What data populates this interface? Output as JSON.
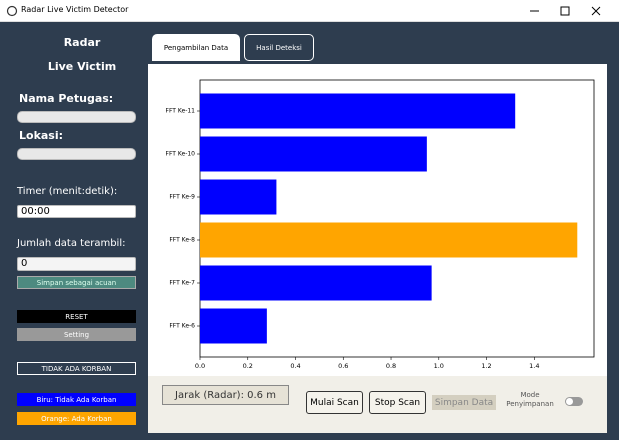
{
  "window": {
    "title": "Radar Live Victim Detector"
  },
  "sidebar": {
    "heading_1": "Radar",
    "heading_2": "Live Victim",
    "name_label": "Nama Petugas:",
    "location_label": "Lokasi:",
    "timer_label": "Timer (menit:detik):",
    "timer_value": "00:00",
    "count_label": "Jumlah data terambil:",
    "count_value": "0",
    "save_reference_button": "Simpan sebagai acuan",
    "reset_button": "RESET",
    "settings_button": "Setting",
    "no_victim_button": "TIDAK ADA KORBAN",
    "legend_blue": "Biru: Tidak Ada Korban",
    "legend_orange": "Orange: Ada Korban"
  },
  "tabs": [
    "Pengambilan Data",
    "Hasil Deteksi"
  ],
  "chart_data": {
    "type": "barh",
    "categories": [
      "FFT Ke-11",
      "FFT Ke-10",
      "FFT Ke-9",
      "FFT Ke-8",
      "FFT Ke-7",
      "FFT Ke-6"
    ],
    "values": [
      1.32,
      0.95,
      0.32,
      1.58,
      0.97,
      0.28
    ],
    "colors": [
      "#0000ff",
      "#0000ff",
      "#0000ff",
      "#ffa500",
      "#0000ff",
      "#0000ff"
    ],
    "xlim": [
      0,
      1.65
    ],
    "xticks": [
      {
        "value": 0,
        "label": "0.0"
      },
      0.2,
      0.4,
      0.6,
      0.8,
      {
        "value": 1,
        "label": "1.0"
      },
      1.2,
      1.4
    ]
  },
  "bottom_bar": {
    "distance": "Jarak (Radar): 0.6 m",
    "start_button": "Mulai Scan",
    "stop_button": "Stop Scan",
    "save_button": "Simpan Data",
    "mode_label": "Mode Penyimpanan"
  }
}
